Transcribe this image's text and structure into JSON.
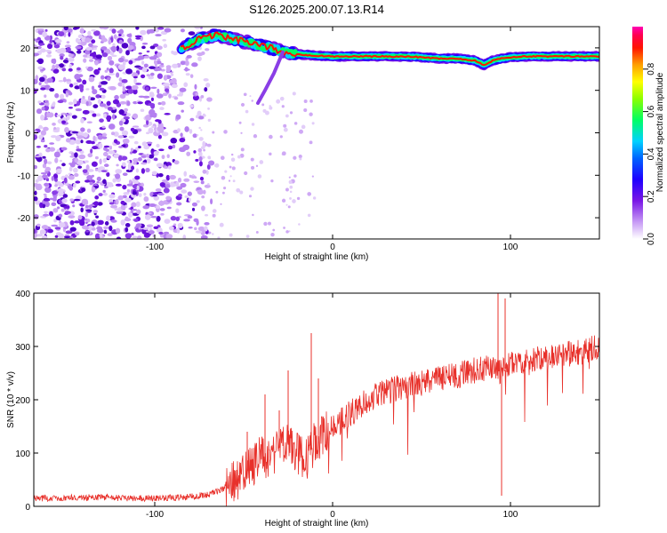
{
  "title": "S126.2025.200.07.13.R14",
  "chart_data": [
    {
      "type": "heatmap",
      "xlabel": "Height of straight line (km)",
      "ylabel": "Frequency (Hz)",
      "xlim": [
        -168,
        150
      ],
      "ylim": [
        -25,
        25
      ],
      "xticks": [
        -100,
        0,
        100
      ],
      "yticks": [
        -20,
        -10,
        0,
        10,
        20
      ],
      "grid": false,
      "colorbar": {
        "label": "Normalized spectral amplitude",
        "range": [
          0.0,
          1.0
        ],
        "ticks": [
          0.0,
          0.2,
          0.4,
          0.6,
          0.8
        ],
        "colors": [
          "#ffffff",
          "#b46cf0",
          "#5a00d6",
          "#0000ff",
          "#00c8ff",
          "#00ff50",
          "#a0ff00",
          "#ffff00",
          "#ffa000",
          "#ff0000",
          "#ff0060",
          "#ff00c0"
        ]
      },
      "ridge": {
        "x": [
          -85,
          -75,
          -65,
          -55,
          -45,
          -35,
          -28,
          -20,
          -10,
          0,
          10,
          20,
          30,
          40,
          50,
          60,
          70,
          80,
          85,
          90,
          95,
          100,
          110,
          120,
          130,
          140,
          150
        ],
        "y": [
          20,
          22,
          23,
          22,
          21,
          20,
          19,
          18.5,
          18.2,
          18,
          18,
          18,
          18,
          18,
          17.8,
          17.5,
          17.5,
          17,
          16,
          17,
          17.5,
          17.8,
          18,
          18,
          18,
          18,
          18
        ]
      },
      "noise_region": {
        "x_from": -168,
        "x_to": -80,
        "density": "high"
      }
    },
    {
      "type": "line",
      "xlabel": "Height of straight line (km)",
      "ylabel": "SNR (10 * v/v)",
      "xlim": [
        -168,
        150
      ],
      "ylim": [
        0,
        400
      ],
      "xticks": [
        -100,
        0,
        100
      ],
      "yticks": [
        0,
        100,
        200,
        300,
        400
      ],
      "grid": false,
      "color": "#e8312b",
      "x": [
        -168,
        -150,
        -130,
        -110,
        -90,
        -80,
        -70,
        -60,
        -50,
        -45,
        -40,
        -35,
        -30,
        -25,
        -20,
        -15,
        -10,
        -5,
        0,
        10,
        20,
        30,
        40,
        50,
        60,
        70,
        80,
        85,
        90,
        95,
        100,
        110,
        120,
        130,
        140,
        150
      ],
      "y": [
        15,
        16,
        17,
        15,
        16,
        18,
        22,
        35,
        60,
        75,
        95,
        90,
        110,
        120,
        100,
        85,
        120,
        135,
        150,
        175,
        200,
        215,
        225,
        230,
        240,
        245,
        255,
        260,
        262,
        250,
        270,
        275,
        280,
        285,
        290,
        300
      ],
      "spikes": [
        {
          "x": -48,
          "y": 140
        },
        {
          "x": -38,
          "y": 210
        },
        {
          "x": -30,
          "y": 180
        },
        {
          "x": -25,
          "y": 255
        },
        {
          "x": -12,
          "y": 325
        },
        {
          "x": -8,
          "y": 240
        },
        {
          "x": 93,
          "y": 400
        },
        {
          "x": 95,
          "y": 20
        },
        {
          "x": 97,
          "y": 390
        }
      ]
    }
  ]
}
